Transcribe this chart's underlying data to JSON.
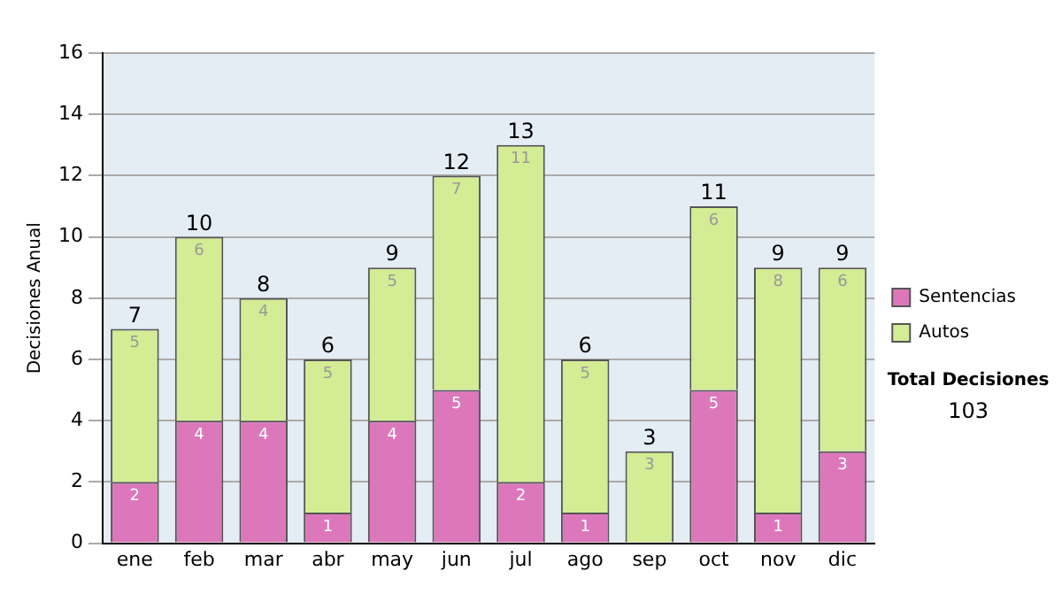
{
  "chart_data": {
    "type": "bar",
    "stacked": true,
    "ylabel": "Decisiones Anual",
    "categories": [
      "ene",
      "feb",
      "mar",
      "abr",
      "may",
      "jun",
      "jul",
      "ago",
      "sep",
      "oct",
      "nov",
      "dic"
    ],
    "series": [
      {
        "name": "Sentencias",
        "color": "#dd77bb",
        "values": [
          2,
          4,
          4,
          1,
          4,
          5,
          2,
          1,
          0,
          5,
          1,
          3
        ],
        "value_labels": [
          "2",
          "4",
          "4",
          "1",
          "4",
          "5",
          "2",
          "1",
          null,
          "5",
          "1",
          "3"
        ]
      },
      {
        "name": "Autos",
        "color": "#d4ec94",
        "values": [
          5,
          6,
          4,
          5,
          5,
          7,
          11,
          5,
          3,
          6,
          8,
          6
        ],
        "value_labels": [
          "5",
          "6",
          "4",
          "5",
          "5",
          "7",
          "11",
          "5",
          "3",
          "6",
          "8",
          "6"
        ]
      }
    ],
    "totals": [
      "7",
      "10",
      "8",
      "6",
      "9",
      "12",
      "13",
      "6",
      "3",
      "11",
      "9",
      "9"
    ],
    "ylim": [
      0,
      16
    ],
    "yticks": [
      0,
      2,
      4,
      6,
      8,
      10,
      12,
      14,
      16
    ],
    "grid": "y",
    "legend": "right",
    "annotations": [
      "Total Decisiones",
      "103"
    ]
  }
}
